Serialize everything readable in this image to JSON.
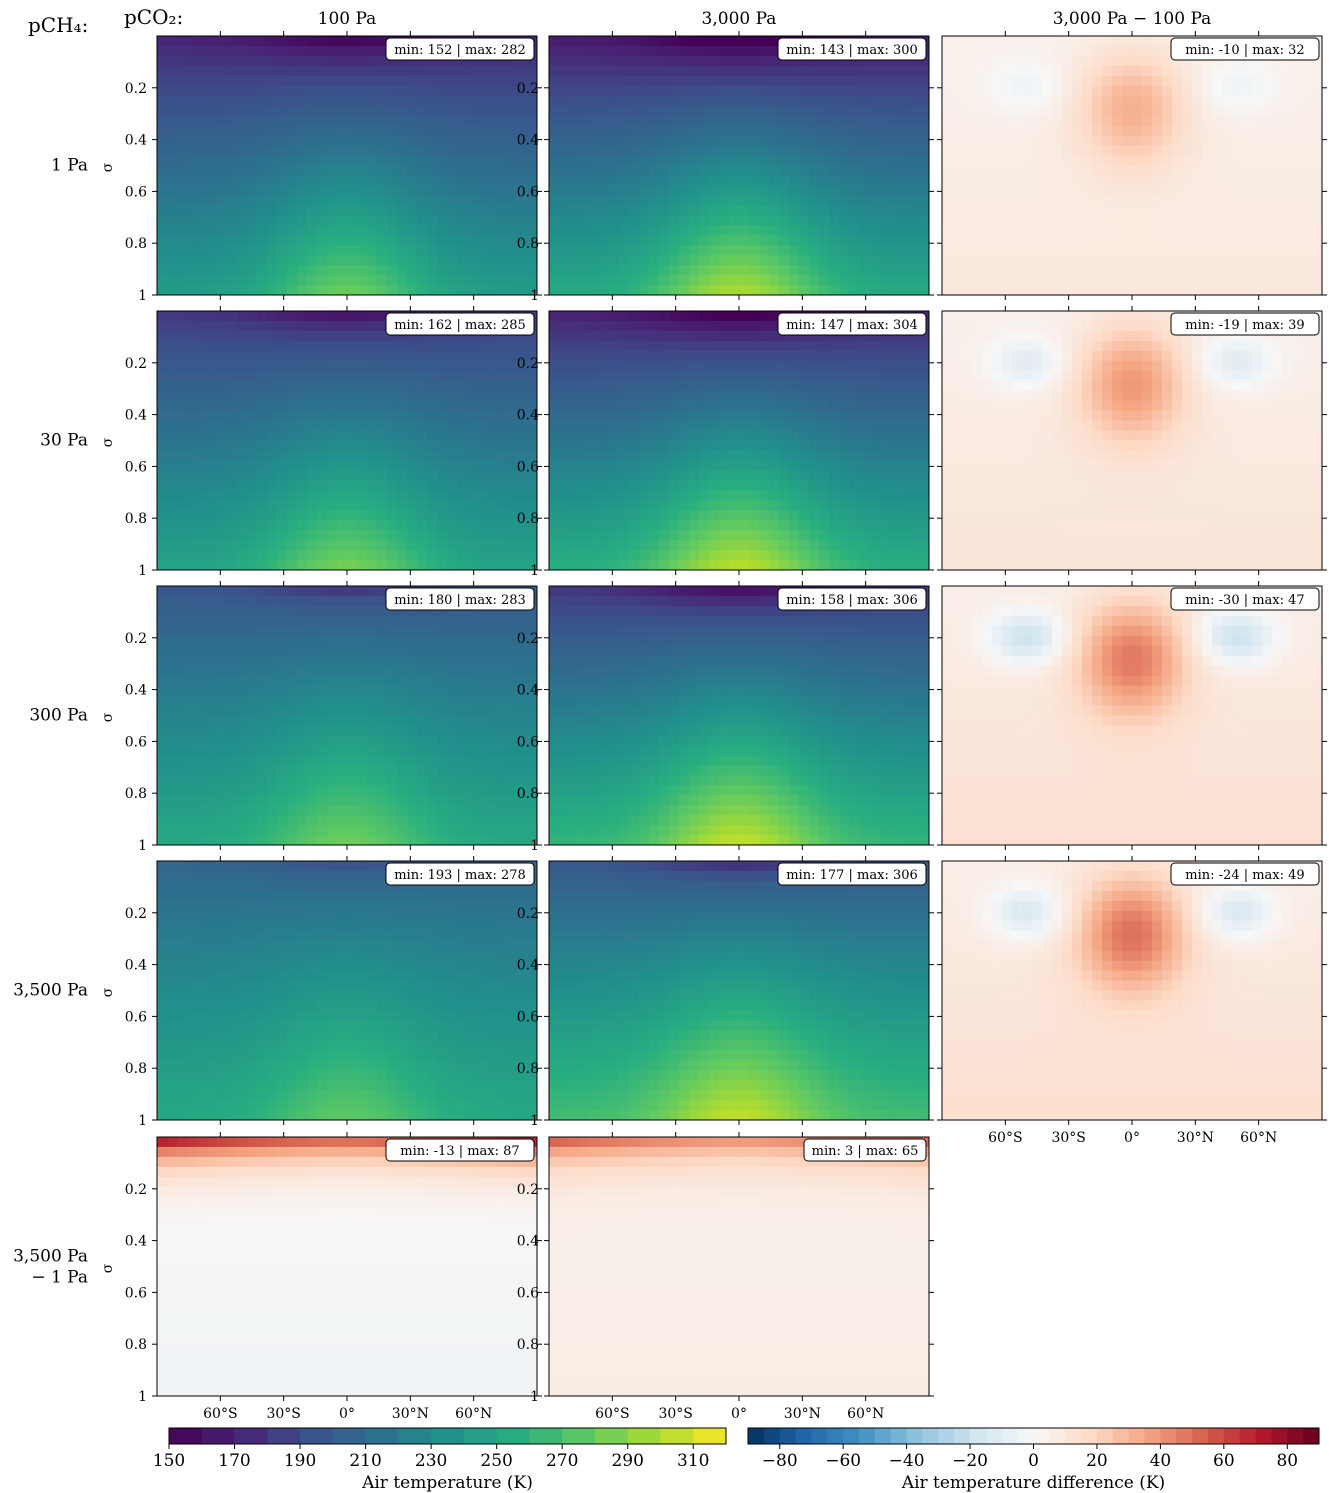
{
  "header": {
    "row_label": "pCH₄:",
    "col_label": "pCO₂:",
    "columns": [
      "100 Pa",
      "3,000 Pa",
      "3,000 Pa − 100 Pa"
    ]
  },
  "rows": [
    "1 Pa",
    "30 Pa",
    "300 Pa",
    "3,500 Pa",
    "3,500 Pa\n− 1 Pa"
  ],
  "chart_data": {
    "type": "heatmap",
    "ylabel": "σ",
    "y_ticks": [
      "0.2",
      "0.4",
      "0.6",
      "0.8",
      "1"
    ],
    "y_tick_values": [
      0.2,
      0.4,
      0.6,
      0.8,
      1.0
    ],
    "ylim": [
      1,
      0
    ],
    "x_ticks": [
      "60°S",
      "30°S",
      "0°",
      "30°N",
      "60°N"
    ],
    "x_tick_values": [
      -60,
      -30,
      0,
      30,
      60
    ],
    "xlim": [
      -90,
      90
    ],
    "panels": [
      {
        "row": 0,
        "col": 0,
        "kind": "temperature",
        "min": 152,
        "max": 282,
        "label": "min: 152 | max: 282"
      },
      {
        "row": 0,
        "col": 1,
        "kind": "temperature",
        "min": 143,
        "max": 300,
        "label": "min: 143 | max: 300"
      },
      {
        "row": 0,
        "col": 2,
        "kind": "difference",
        "min": -10,
        "max": 32,
        "label": "min: -10 | max: 32"
      },
      {
        "row": 1,
        "col": 0,
        "kind": "temperature",
        "min": 162,
        "max": 285,
        "label": "min: 162 | max: 285"
      },
      {
        "row": 1,
        "col": 1,
        "kind": "temperature",
        "min": 147,
        "max": 304,
        "label": "min: 147 | max: 304"
      },
      {
        "row": 1,
        "col": 2,
        "kind": "difference",
        "min": -19,
        "max": 39,
        "label": "min: -19 | max: 39"
      },
      {
        "row": 2,
        "col": 0,
        "kind": "temperature",
        "min": 180,
        "max": 283,
        "label": "min: 180 | max: 283"
      },
      {
        "row": 2,
        "col": 1,
        "kind": "temperature",
        "min": 158,
        "max": 306,
        "label": "min: 158 | max: 306"
      },
      {
        "row": 2,
        "col": 2,
        "kind": "difference",
        "min": -30,
        "max": 47,
        "label": "min: -30 | max: 47"
      },
      {
        "row": 3,
        "col": 0,
        "kind": "temperature",
        "min": 193,
        "max": 278,
        "label": "min: 193 | max: 278"
      },
      {
        "row": 3,
        "col": 1,
        "kind": "temperature",
        "min": 177,
        "max": 306,
        "label": "min: 177 | max: 306"
      },
      {
        "row": 3,
        "col": 2,
        "kind": "difference",
        "min": -24,
        "max": 49,
        "label": "min: -24 | max: 49"
      },
      {
        "row": 4,
        "col": 0,
        "kind": "difference",
        "min": -13,
        "max": 87,
        "label": "min: -13 | max: 87"
      },
      {
        "row": 4,
        "col": 1,
        "kind": "difference",
        "min": 3,
        "max": 65,
        "label": "min: 3 | max: 65"
      }
    ],
    "colorbars": [
      {
        "name": "temperature",
        "label": "Air temperature (K)",
        "range": [
          150,
          320
        ],
        "ticks": [
          150,
          170,
          190,
          210,
          230,
          250,
          270,
          290,
          310
        ],
        "colormap": "viridis"
      },
      {
        "name": "difference",
        "label": "Air temperature difference (K)",
        "range": [
          -90,
          90
        ],
        "ticks": [
          -80,
          -60,
          -40,
          -20,
          0,
          20,
          40,
          60,
          80
        ],
        "colormap": "RdBu_r"
      }
    ]
  }
}
